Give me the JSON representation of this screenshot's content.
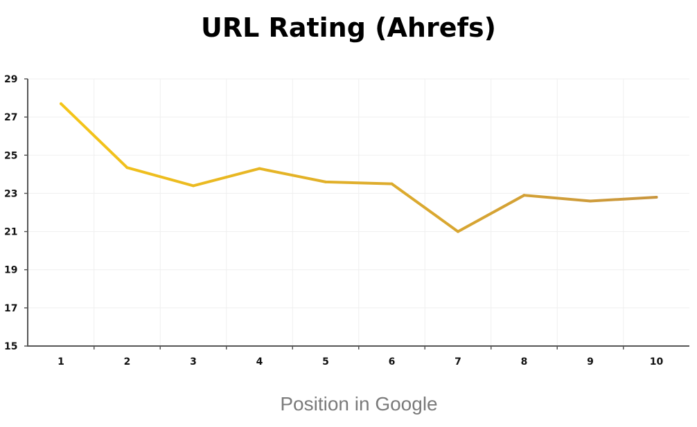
{
  "chart_data": {
    "type": "line",
    "title": "URL Rating (Ahrefs)",
    "xlabel": "Position in Google",
    "ylabel": "",
    "categories": [
      "1",
      "2",
      "3",
      "4",
      "5",
      "6",
      "7",
      "8",
      "9",
      "10"
    ],
    "series": [
      {
        "values": [
          27.7,
          24.35,
          23.4,
          24.3,
          23.6,
          23.5,
          21.0,
          22.9,
          22.6,
          22.8
        ],
        "color_start": "#f5c518",
        "color_end": "#c9963e"
      }
    ],
    "ylim": [
      15,
      29
    ],
    "yticks": [
      "15",
      "17",
      "19",
      "21",
      "23",
      "25",
      "27",
      "29"
    ],
    "grid": true,
    "legend": "none"
  }
}
